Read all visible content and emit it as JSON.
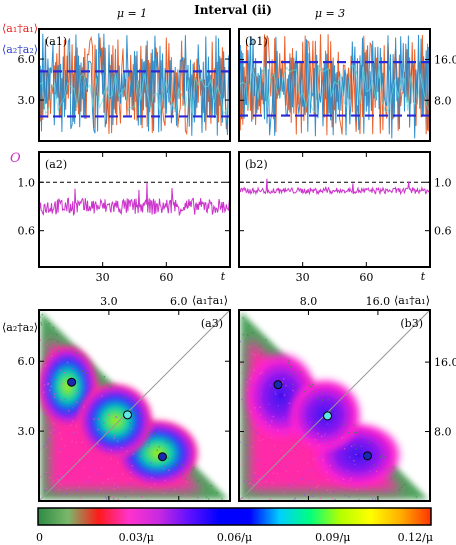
{
  "figure": {
    "title": "Interval (ii)",
    "col_left": "μ = 1",
    "col_right": "μ = 3"
  },
  "chart_data": [
    {
      "id": "a1",
      "type": "line",
      "panel_label": "(a1)",
      "ylabel_1": "⟨a₁†a₁⟩",
      "ylabel_2": "⟨a₂†a₂⟩",
      "ylim": [
        0,
        8.2
      ],
      "yticks": [
        "3.0",
        "6.0"
      ],
      "ytick_values": [
        3,
        6
      ],
      "dashed_levels": [
        1.8,
        5.1
      ],
      "series": [
        {
          "color": "#e5531a",
          "band": [
            0.5,
            7.6
          ]
        },
        {
          "color": "#1b84c9",
          "band": [
            0.3,
            7.9
          ]
        }
      ],
      "colors": {
        "pop1": "#e8201e",
        "pop2": "#2f3ec7",
        "dashed": "#2a2ad8",
        "cyan": "#55e0e0"
      }
    },
    {
      "id": "b1",
      "type": "line",
      "panel_label": "(b1)",
      "ylim": [
        0,
        22
      ],
      "yticks": [
        "8.0",
        "16.0"
      ],
      "ytick_values": [
        8,
        16
      ],
      "dashed_levels": [
        5,
        15.5
      ],
      "series": [
        {
          "color": "#e5531a",
          "band": [
            1,
            21
          ]
        },
        {
          "color": "#1b84c9",
          "band": [
            0.5,
            21
          ]
        }
      ]
    },
    {
      "id": "a2",
      "type": "line",
      "panel_label": "(a2)",
      "ylabel": "O",
      "ylim": [
        0.3,
        1.25
      ],
      "yticks": [
        "0.6",
        "1.0"
      ],
      "ytick_values": [
        0.6,
        1.0
      ],
      "reference_line": 1.0,
      "mean_level": 0.8,
      "xlabel": "t",
      "xlim": [
        0,
        90
      ],
      "xticks": [
        "30",
        "60"
      ],
      "xtick_values": [
        30,
        60
      ],
      "color": "#cc33cc"
    },
    {
      "id": "b2",
      "type": "line",
      "panel_label": "(b2)",
      "ylim": [
        0.3,
        1.25
      ],
      "yticks": [
        "0.6",
        "1.0"
      ],
      "ytick_values": [
        0.6,
        1.0
      ],
      "reference_line": 1.0,
      "mean_level": 0.93,
      "xlabel": "t",
      "xlim": [
        0,
        90
      ],
      "xticks": [
        "30",
        "60"
      ],
      "xtick_values": [
        30,
        60
      ],
      "color": "#cc33cc"
    },
    {
      "id": "a3",
      "type": "heatmap",
      "panel_label": "(a3)",
      "xlabel": "⟨a₁†a₁⟩",
      "ylabel": "⟨a₂†a₂⟩",
      "xlim": [
        0,
        8.2
      ],
      "ylim": [
        0,
        8.2
      ],
      "xticks": [
        "3.0",
        "6.0"
      ],
      "xtick_values": [
        3,
        6
      ],
      "yticks": [
        "3.0",
        "6.0"
      ],
      "ytick_values": [
        3,
        6
      ],
      "fixed_points": [
        {
          "x": 1.4,
          "y": 5.1,
          "color": "#1a2ab0"
        },
        {
          "x": 3.8,
          "y": 3.7,
          "color": "#5fe8e8"
        },
        {
          "x": 5.3,
          "y": 1.9,
          "color": "#1a2ab0"
        }
      ]
    },
    {
      "id": "b3",
      "type": "heatmap",
      "panel_label": "(b3)",
      "xlabel": "⟨a₁†a₁⟩",
      "xlim": [
        0,
        22
      ],
      "ylim": [
        0,
        22
      ],
      "xticks": [
        "8.0",
        "16.0"
      ],
      "xtick_values": [
        8,
        16
      ],
      "yticks": [
        "8.0",
        "16.0"
      ],
      "ytick_values": [
        8,
        16
      ],
      "fixed_points": [
        {
          "x": 4.5,
          "y": 13.4,
          "color": "#1a2ab0"
        },
        {
          "x": 10.2,
          "y": 9.8,
          "color": "#5fe8e8"
        },
        {
          "x": 14.8,
          "y": 5.2,
          "color": "#1a2ab0"
        }
      ]
    },
    {
      "id": "colorbar",
      "type": "colorbar",
      "ticks": [
        "0",
        "0.03/μ",
        "0.06/μ",
        "0.09/μ",
        "0.12/μ"
      ],
      "tick_values": [
        0,
        0.03,
        0.06,
        0.09,
        0.12
      ],
      "range": [
        0,
        0.12
      ],
      "stops": [
        "#2e8b45",
        "#7ab86a",
        "#ff1a1a",
        "#ff33cc",
        "#c829e0",
        "#6010ff",
        "#0000ff",
        "#0000ff",
        "#00cfff",
        "#00ff80",
        "#b3ff00",
        "#ffff00",
        "#ffae00",
        "#ff3300"
      ]
    }
  ]
}
